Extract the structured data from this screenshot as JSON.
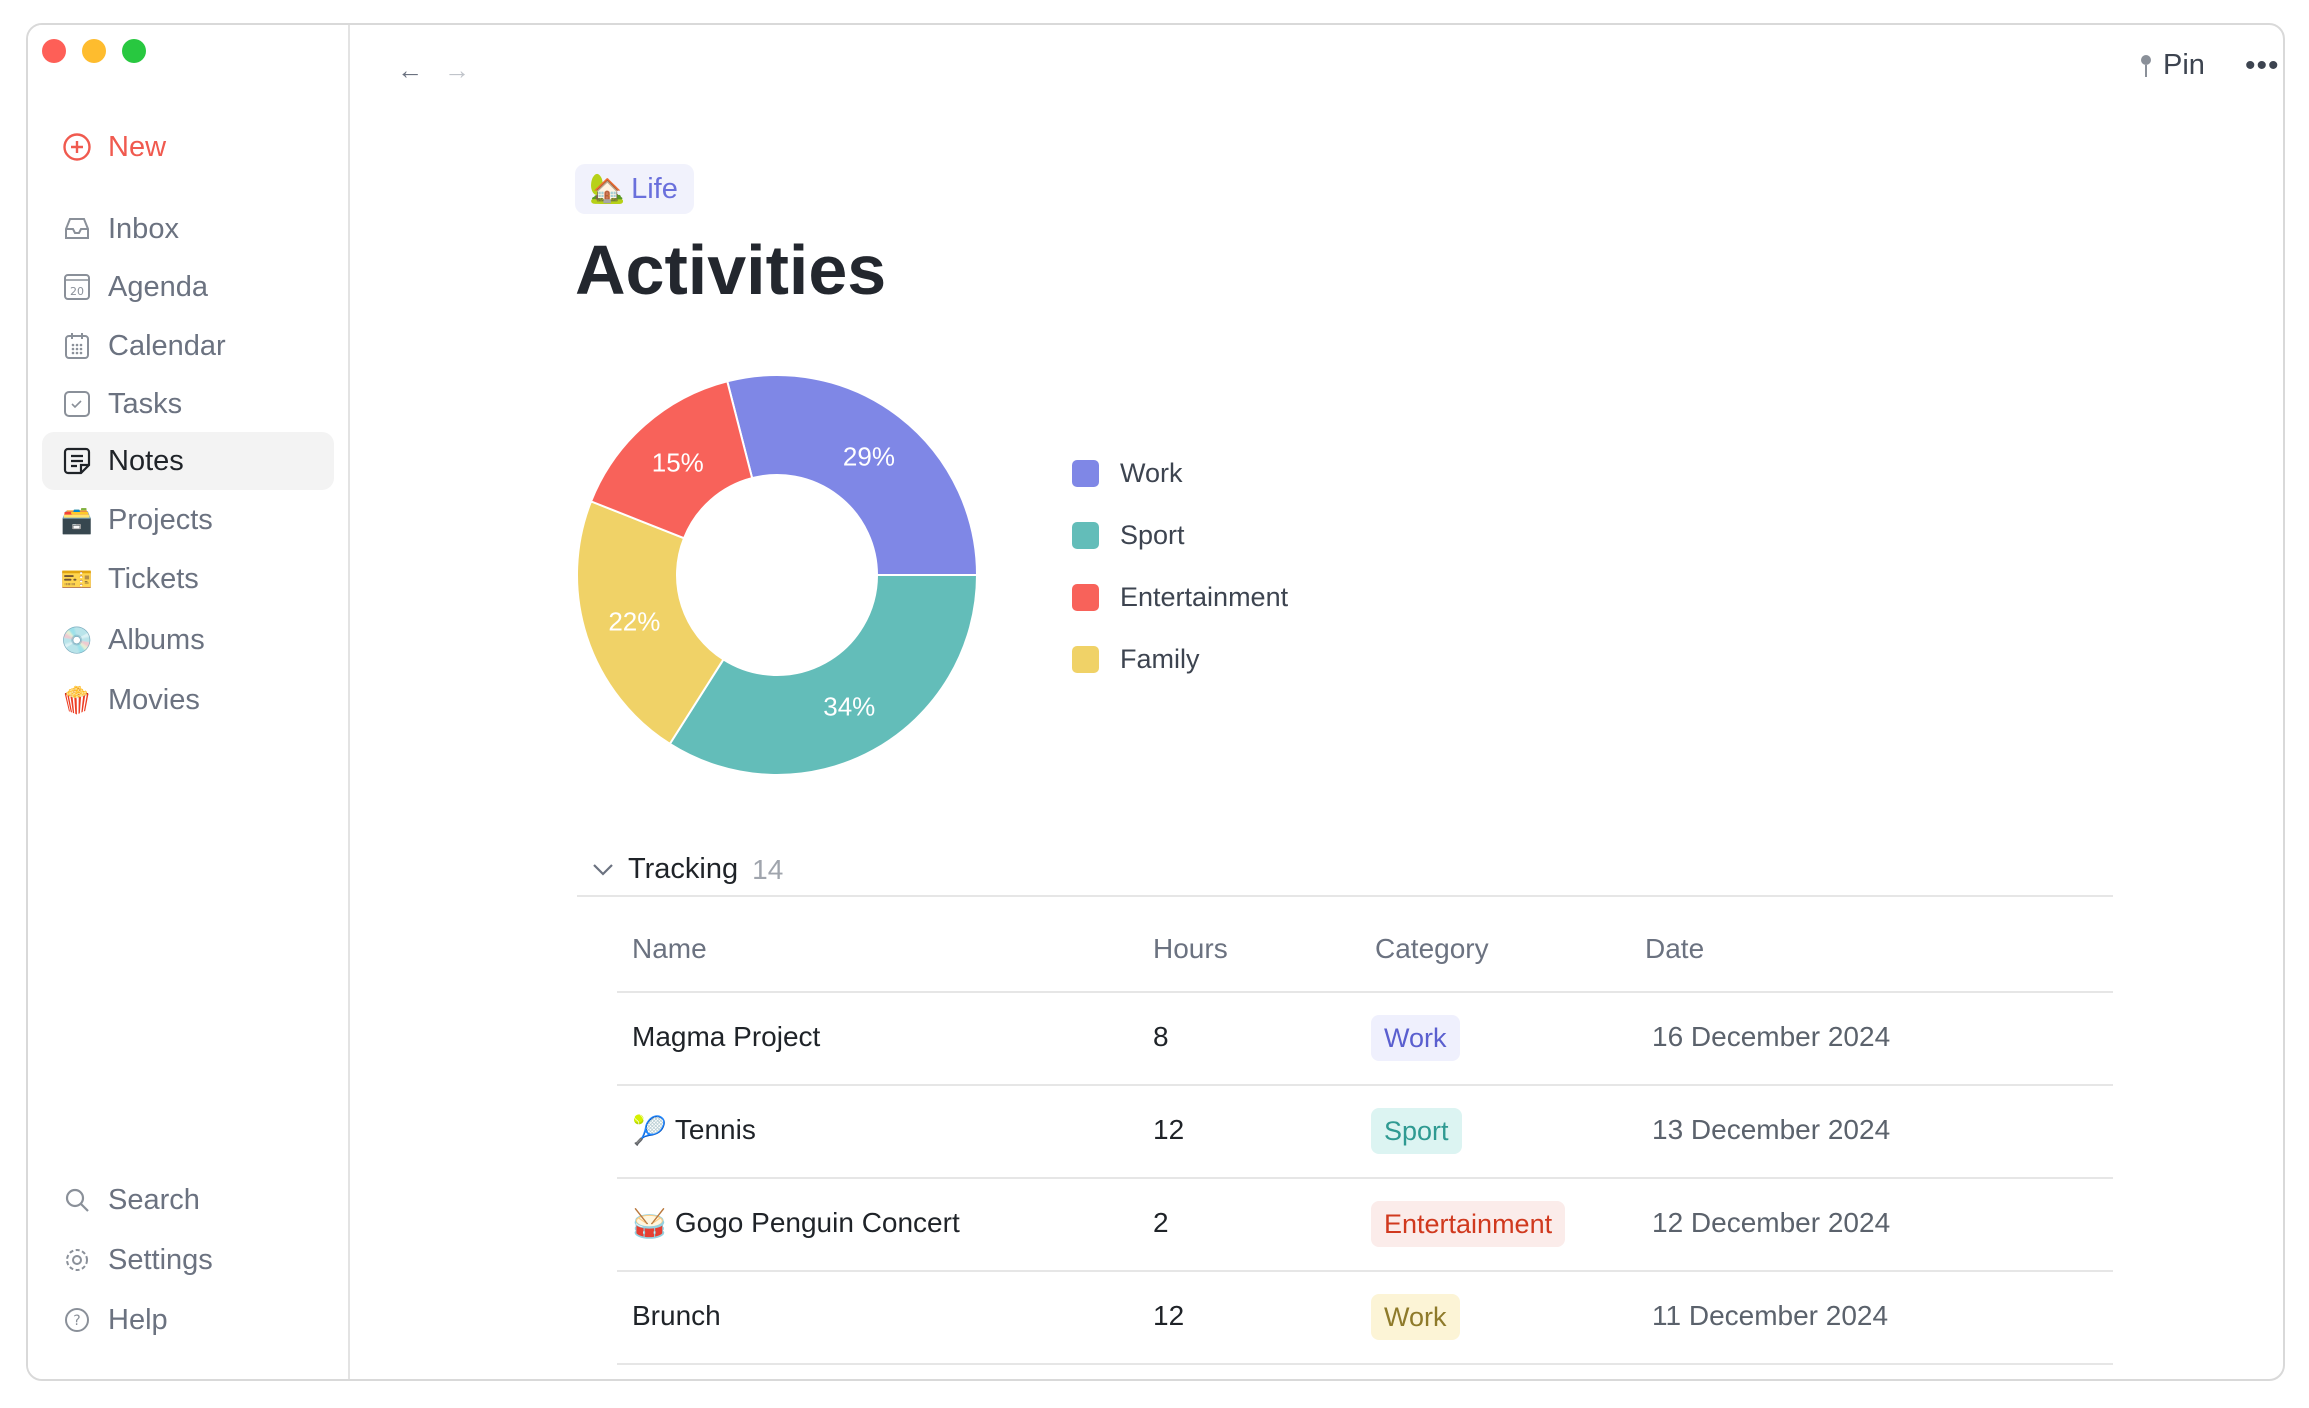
{
  "sidebar": {
    "new_label": "New",
    "items": [
      {
        "label": "Inbox",
        "icon": "inbox-icon"
      },
      {
        "label": "Agenda",
        "icon": "agenda-icon",
        "icon_text": "20"
      },
      {
        "label": "Calendar",
        "icon": "calendar-icon"
      },
      {
        "label": "Tasks",
        "icon": "tasks-icon"
      },
      {
        "label": "Notes",
        "icon": "notes-icon",
        "active": true
      },
      {
        "label": "Projects",
        "icon": "card-box-icon",
        "glyph": "🗃️"
      },
      {
        "label": "Tickets",
        "icon": "ticket-icon",
        "glyph": "🎫"
      },
      {
        "label": "Albums",
        "icon": "cd-icon",
        "glyph": "💿"
      },
      {
        "label": "Movies",
        "icon": "popcorn-icon",
        "glyph": "🍿"
      }
    ],
    "bottom": [
      {
        "label": "Search"
      },
      {
        "label": "Settings"
      },
      {
        "label": "Help"
      }
    ]
  },
  "toolbar": {
    "pin_label": "Pin"
  },
  "page": {
    "chip_emoji": "🏡",
    "chip_label": "Life",
    "title": "Activities"
  },
  "chart_data": {
    "type": "pie",
    "donut": true,
    "series": [
      {
        "name": "Work",
        "value": 29,
        "label": "29%",
        "color": "#7f87e6"
      },
      {
        "name": "Sport",
        "value": 34,
        "label": "34%",
        "color": "#63bdb9"
      },
      {
        "name": "Family",
        "value": 22,
        "label": "22%",
        "color": "#f0d267"
      },
      {
        "name": "Entertainment",
        "value": 15,
        "label": "15%",
        "color": "#f8625a"
      }
    ],
    "legend": [
      "Work",
      "Sport",
      "Entertainment",
      "Family"
    ],
    "legend_placement": "right"
  },
  "tracking": {
    "label": "Tracking",
    "count": "14",
    "columns": [
      "Name",
      "Hours",
      "Category",
      "Date"
    ],
    "rows": [
      {
        "emoji": "",
        "name": "Magma Project",
        "hours": "8",
        "category": "Work",
        "cat_bg": "#eff0fd",
        "cat_fg": "#5a5fcf",
        "date": "16 December 2024"
      },
      {
        "emoji": "🎾",
        "name": "Tennis",
        "hours": "12",
        "category": "Sport",
        "cat_bg": "#dcf4f2",
        "cat_fg": "#2f9a92",
        "date": "13 December 2024"
      },
      {
        "emoji": "🥁",
        "name": "Gogo Penguin Concert",
        "hours": "2",
        "category": "Entertainment",
        "cat_bg": "#fbecea",
        "cat_fg": "#d0391e",
        "date": "12 December 2024"
      },
      {
        "emoji": "",
        "name": "Brunch",
        "hours": "12",
        "category": "Work",
        "cat_bg": "#fcf4d6",
        "cat_fg": "#8e7a2a",
        "date": "11 December 2024"
      }
    ]
  }
}
